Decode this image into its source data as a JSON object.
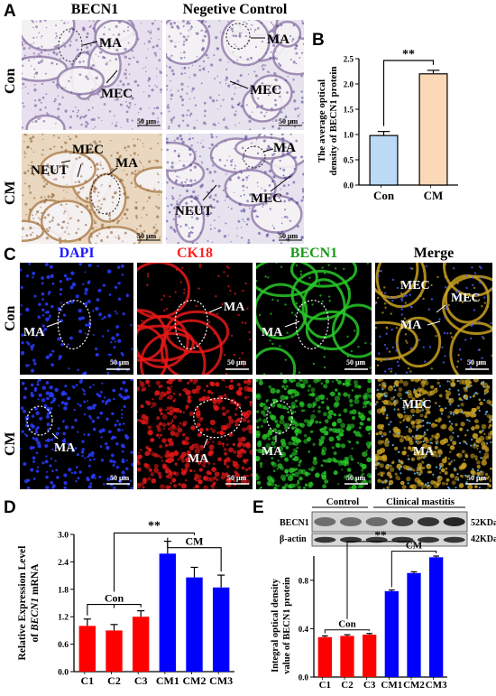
{
  "panel_letters": {
    "A": "A",
    "B": "B",
    "C": "C",
    "D": "D",
    "E": "E"
  },
  "panel_a": {
    "col_headers": [
      "BECN1",
      "Negetive Control"
    ],
    "row_labels": [
      "Con",
      "CM"
    ],
    "tiles": [
      {
        "labels": [
          "MA",
          "MEC"
        ],
        "scale": "50 μm"
      },
      {
        "labels": [
          "MA",
          "MEC"
        ],
        "scale": "50 μm"
      },
      {
        "labels": [
          "MEC",
          "NEUT",
          "MA"
        ],
        "scale": "50 μm"
      },
      {
        "labels": [
          "MA",
          "NEUT",
          "MEC"
        ],
        "scale": "50 μm"
      }
    ],
    "colors": {
      "con_bg": "#e8e0ee",
      "cm_bg": "#e9d7bf",
      "nc_bg": "#e6e2ee"
    }
  },
  "panel_b": {
    "ylabel_line1": "The average optical",
    "ylabel_line2": "density of BECN1 protein",
    "significance": "**",
    "ticks": [
      "0.0",
      "0.5",
      "1.0",
      "1.5",
      "2.0",
      "2.5"
    ]
  },
  "panel_c": {
    "col_headers": [
      "DAPI",
      "CK18",
      "BECN1",
      "Merge"
    ],
    "header_colors": [
      "#1a1aff",
      "#ff2020",
      "#1a9a1a",
      "#000000"
    ],
    "row_labels": [
      "Con",
      "CM"
    ],
    "scale": "50 μm",
    "labels": {
      "con": [
        [
          "MA"
        ],
        [
          "MA"
        ],
        [
          "MA"
        ],
        [
          "MEC",
          "MEC",
          "MA"
        ]
      ],
      "cm": [
        [
          "MA"
        ],
        [
          "MA"
        ],
        [
          "MA"
        ],
        [
          "MEC",
          "MA"
        ]
      ]
    }
  },
  "panel_d": {
    "ylabel_line1": "Relative Expression Level",
    "ylabel_line2_prefix": "of ",
    "ylabel_gene": "BECN1",
    "ylabel_line2_suffix": " mRNA",
    "significance": "**",
    "group_labels": {
      "con": "Con",
      "cm": "CM"
    },
    "ticks": [
      "0.0",
      "0.6",
      "1.2",
      "1.8",
      "2.4",
      "3.0"
    ]
  },
  "panel_e": {
    "blot_groups": [
      "Control",
      "Clinical mastitis"
    ],
    "blot_rows": [
      {
        "name": "BECN1",
        "kda": "52KDa"
      },
      {
        "name": "β-actin",
        "kda": "42KDa"
      }
    ],
    "ylabel_line1": "Integral optical density",
    "ylabel_line2": "value of BECN1 protein",
    "significance": "**",
    "group_labels": {
      "con": "Con",
      "cm": "CM"
    },
    "ticks": [
      "0.0",
      "0.4",
      "0.8"
    ]
  },
  "chart_data": [
    {
      "type": "bar",
      "panel": "B",
      "categories": [
        "Con",
        "CM"
      ],
      "values": [
        0.98,
        2.2
      ],
      "errors": [
        0.08,
        0.07
      ],
      "colors": [
        "#bcd9f5",
        "#fbd9b8"
      ],
      "ylim": [
        0,
        2.5
      ]
    },
    {
      "type": "bar",
      "panel": "D",
      "categories": [
        "C1",
        "C2",
        "C3",
        "CM1",
        "CM2",
        "CM3"
      ],
      "values": [
        1.0,
        0.9,
        1.2,
        2.58,
        2.06,
        1.84
      ],
      "errors": [
        0.15,
        0.13,
        0.13,
        0.27,
        0.22,
        0.27
      ],
      "colors": [
        "#ff0000",
        "#ff0000",
        "#ff0000",
        "#0000ff",
        "#0000ff",
        "#0000ff"
      ],
      "ylim": [
        0,
        3.0
      ]
    },
    {
      "type": "bar",
      "panel": "E",
      "categories": [
        "C1",
        "C2",
        "C3",
        "CM1",
        "CM2",
        "CM3"
      ],
      "values": [
        0.33,
        0.34,
        0.35,
        0.71,
        0.86,
        0.99
      ],
      "errors": [
        0.01,
        0.01,
        0.01,
        0.01,
        0.01,
        0.01
      ],
      "colors": [
        "#ff0000",
        "#ff0000",
        "#ff0000",
        "#0000ff",
        "#0000ff",
        "#0000ff"
      ],
      "ylim": [
        0,
        1.0
      ]
    }
  ]
}
